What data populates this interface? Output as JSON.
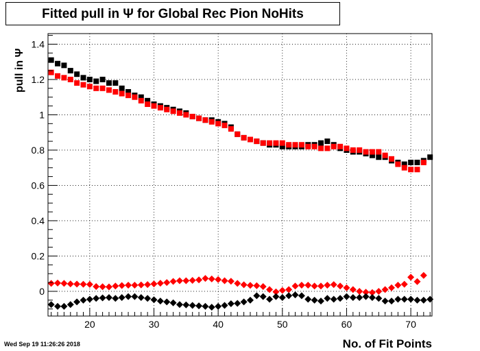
{
  "chart_data": {
    "type": "scatter",
    "title": "Fitted pull in  Ψ  for Global Rec Pion NoHits",
    "xlabel": "No. of Fit Points",
    "ylabel": "pull in  Ψ",
    "xlim": [
      13.5,
      73.3
    ],
    "ylim": [
      -0.14,
      1.46
    ],
    "xticks": [
      20,
      30,
      40,
      50,
      60,
      70
    ],
    "yticks": [
      0,
      0.2,
      0.4,
      0.6,
      0.8,
      1,
      1.2,
      1.4
    ],
    "grid": true,
    "legend": "none",
    "series": [
      {
        "color": "#000000",
        "marker": "square",
        "x": [
          14,
          15,
          16,
          17,
          18,
          19,
          20,
          21,
          22,
          23,
          24,
          25,
          26,
          27,
          28,
          29,
          30,
          31,
          32,
          33,
          34,
          35,
          36,
          37,
          38,
          39,
          40,
          41,
          42,
          43,
          44,
          45,
          46,
          47,
          48,
          49,
          50,
          51,
          52,
          53,
          54,
          55,
          56,
          57,
          58,
          59,
          60,
          61,
          62,
          63,
          64,
          65,
          66,
          67,
          68,
          69,
          70,
          71,
          72,
          73
        ],
        "y": [
          1.31,
          1.29,
          1.28,
          1.25,
          1.23,
          1.21,
          1.2,
          1.19,
          1.2,
          1.18,
          1.18,
          1.15,
          1.13,
          1.11,
          1.1,
          1.08,
          1.06,
          1.05,
          1.04,
          1.03,
          1.02,
          1.01,
          0.99,
          0.98,
          0.97,
          0.97,
          0.96,
          0.95,
          0.93,
          0.89,
          0.87,
          0.86,
          0.85,
          0.84,
          0.83,
          0.83,
          0.82,
          0.82,
          0.82,
          0.82,
          0.83,
          0.83,
          0.84,
          0.85,
          0.83,
          0.81,
          0.8,
          0.79,
          0.79,
          0.78,
          0.77,
          0.76,
          0.76,
          0.74,
          0.73,
          0.72,
          0.73,
          0.73,
          0.74,
          0.76
        ]
      },
      {
        "color": "#ff0000",
        "marker": "square",
        "x": [
          14,
          15,
          16,
          17,
          18,
          19,
          20,
          21,
          22,
          23,
          24,
          25,
          26,
          27,
          28,
          29,
          30,
          31,
          32,
          33,
          34,
          35,
          36,
          37,
          38,
          39,
          40,
          41,
          42,
          43,
          44,
          45,
          46,
          47,
          48,
          49,
          50,
          51,
          52,
          53,
          54,
          55,
          56,
          57,
          58,
          59,
          60,
          61,
          62,
          63,
          64,
          65,
          66,
          67,
          68,
          69,
          70,
          71,
          72
        ],
        "y": [
          1.24,
          1.22,
          1.21,
          1.2,
          1.18,
          1.17,
          1.16,
          1.15,
          1.15,
          1.14,
          1.13,
          1.12,
          1.11,
          1.1,
          1.08,
          1.06,
          1.05,
          1.04,
          1.03,
          1.02,
          1.01,
          1.0,
          0.99,
          0.98,
          0.97,
          0.96,
          0.95,
          0.94,
          0.92,
          0.89,
          0.87,
          0.86,
          0.85,
          0.84,
          0.84,
          0.84,
          0.84,
          0.83,
          0.83,
          0.83,
          0.82,
          0.82,
          0.81,
          0.81,
          0.82,
          0.82,
          0.81,
          0.8,
          0.8,
          0.79,
          0.79,
          0.79,
          0.77,
          0.75,
          0.72,
          0.7,
          0.69,
          0.69,
          0.73
        ]
      },
      {
        "color": "#ff0000",
        "marker": "diamond",
        "x": [
          14,
          15,
          16,
          17,
          18,
          19,
          20,
          21,
          22,
          23,
          24,
          25,
          26,
          27,
          28,
          29,
          30,
          31,
          32,
          33,
          34,
          35,
          36,
          37,
          38,
          39,
          40,
          41,
          42,
          43,
          44,
          45,
          46,
          47,
          48,
          49,
          50,
          51,
          52,
          53,
          54,
          55,
          56,
          57,
          58,
          59,
          60,
          61,
          62,
          63,
          64,
          65,
          66,
          67,
          68,
          69,
          70,
          71,
          72
        ],
        "y": [
          0.045,
          0.047,
          0.045,
          0.042,
          0.041,
          0.04,
          0.039,
          0.027,
          0.026,
          0.025,
          0.03,
          0.033,
          0.035,
          0.035,
          0.036,
          0.038,
          0.042,
          0.046,
          0.05,
          0.056,
          0.06,
          0.06,
          0.062,
          0.065,
          0.073,
          0.07,
          0.067,
          0.06,
          0.057,
          0.045,
          0.037,
          0.034,
          0.032,
          0.027,
          0.01,
          -0.003,
          0.005,
          0.01,
          0.03,
          0.035,
          0.035,
          0.03,
          0.03,
          0.035,
          0.038,
          0.03,
          0.02,
          0.01,
          0.0,
          -0.005,
          -0.007,
          0.0,
          0.01,
          0.02,
          0.035,
          0.04,
          0.08,
          0.055,
          0.09
        ]
      },
      {
        "color": "#000000",
        "marker": "diamond",
        "x": [
          14,
          15,
          16,
          17,
          18,
          19,
          20,
          21,
          22,
          23,
          24,
          25,
          26,
          27,
          28,
          29,
          30,
          31,
          32,
          33,
          34,
          35,
          36,
          37,
          38,
          39,
          40,
          41,
          42,
          43,
          44,
          45,
          46,
          47,
          48,
          49,
          50,
          51,
          52,
          53,
          54,
          55,
          56,
          57,
          58,
          59,
          60,
          61,
          62,
          63,
          64,
          65,
          66,
          67,
          68,
          69,
          70,
          71,
          72,
          73
        ],
        "y": [
          -0.075,
          -0.085,
          -0.085,
          -0.075,
          -0.06,
          -0.05,
          -0.045,
          -0.04,
          -0.037,
          -0.035,
          -0.04,
          -0.035,
          -0.03,
          -0.03,
          -0.035,
          -0.04,
          -0.048,
          -0.055,
          -0.06,
          -0.065,
          -0.075,
          -0.077,
          -0.08,
          -0.082,
          -0.085,
          -0.09,
          -0.085,
          -0.08,
          -0.07,
          -0.068,
          -0.06,
          -0.05,
          -0.025,
          -0.03,
          -0.045,
          -0.03,
          -0.035,
          -0.025,
          -0.02,
          -0.025,
          -0.045,
          -0.05,
          -0.055,
          -0.04,
          -0.045,
          -0.04,
          -0.03,
          -0.035,
          -0.035,
          -0.03,
          -0.035,
          -0.04,
          -0.055,
          -0.055,
          -0.045,
          -0.045,
          -0.045,
          -0.05,
          -0.05,
          -0.045
        ]
      }
    ]
  },
  "footer": {
    "datestamp": "Wed Sep 19 11:26:26 2018"
  }
}
